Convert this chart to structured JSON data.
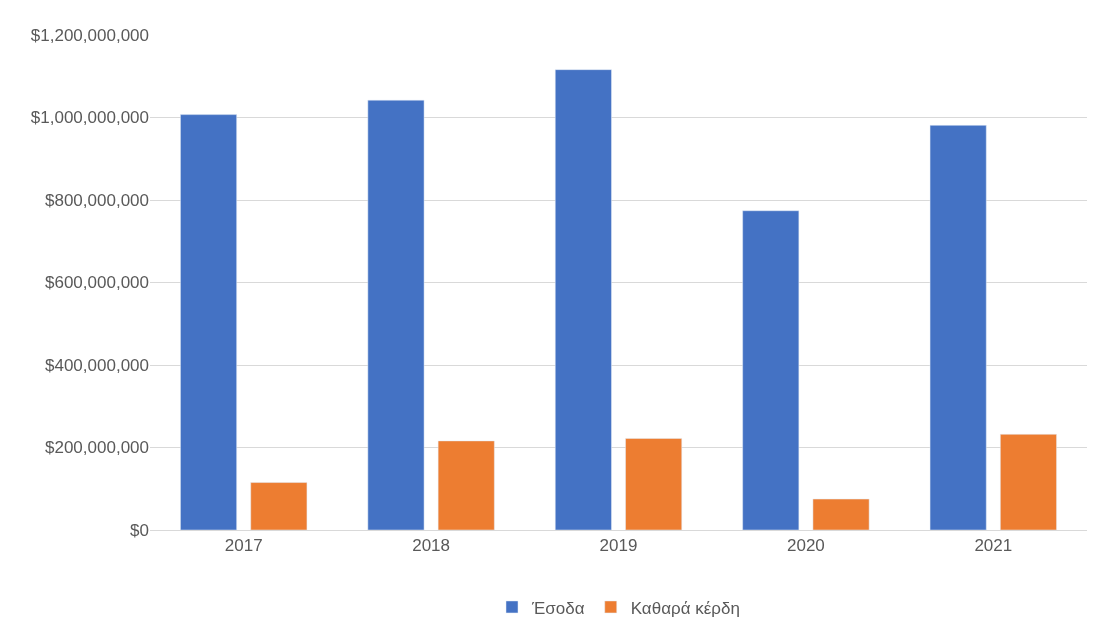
{
  "chart_data": {
    "type": "bar",
    "categories": [
      "2017",
      "2018",
      "2019",
      "2020",
      "2021"
    ],
    "series": [
      {
        "name": "Έσοδα",
        "color": "#4472c4",
        "values": [
          1007000000,
          1042000000,
          1116000000,
          774000000,
          981000000
        ]
      },
      {
        "name": "Καθαρά κέρδη",
        "color": "#ed7d31",
        "values": [
          115000000,
          216000000,
          222000000,
          75000000,
          232000000
        ]
      }
    ],
    "ylim": [
      0,
      1200000000
    ],
    "yticks": [
      {
        "value": 0,
        "label": "$0"
      },
      {
        "value": 200000000,
        "label": "$200,000,000"
      },
      {
        "value": 400000000,
        "label": "$400,000,000"
      },
      {
        "value": 600000000,
        "label": "$600,000,000"
      },
      {
        "value": 800000000,
        "label": "$800,000,000"
      },
      {
        "value": 1000000000,
        "label": "$1,000,000,000"
      },
      {
        "value": 1200000000,
        "label": "$1,200,000,000"
      }
    ],
    "grid": "y",
    "legend": "bottom"
  }
}
